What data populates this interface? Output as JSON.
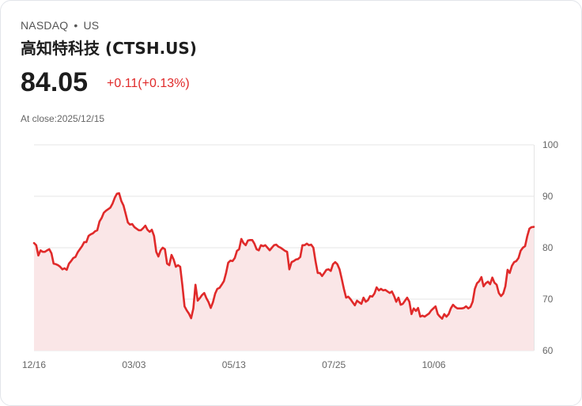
{
  "header": {
    "exchange": "NASDAQ",
    "separator": "•",
    "region": "US",
    "title": "高知特科技 (CTSH.US)",
    "price": "84.05",
    "change": "+0.11(+0.13%)",
    "close_label": "At close:2025/12/15"
  },
  "colors": {
    "line": "#e02a2a",
    "fill": "#fae6e7",
    "grid": "#e4e4e4",
    "down_text": "#e02a2a"
  },
  "chart_data": {
    "type": "area",
    "title": "",
    "xlabel": "",
    "ylabel": "",
    "ylim": [
      60,
      100
    ],
    "yticks": [
      "100",
      "90",
      "80",
      "70",
      "60"
    ],
    "ytick_values": [
      100,
      90,
      80,
      70,
      60
    ],
    "xticks": [
      "12/16",
      "03/03",
      "05/13",
      "07/25",
      "10/06"
    ],
    "grid": true,
    "values": [
      80.9,
      80.5,
      78.5,
      79.5,
      79.2,
      79.2,
      79.5,
      79.7,
      78.9,
      76.9,
      76.8,
      76.6,
      76.3,
      75.8,
      76.0,
      75.7,
      76.9,
      77.4,
      78.0,
      78.2,
      79.1,
      79.7,
      80.3,
      81.1,
      81.1,
      82.3,
      82.6,
      82.8,
      83.2,
      83.4,
      85.1,
      85.8,
      86.8,
      87.2,
      87.5,
      87.8,
      88.6,
      89.7,
      90.5,
      90.6,
      89.1,
      88.2,
      86.6,
      84.9,
      84.5,
      84.6,
      84.0,
      83.7,
      83.4,
      83.4,
      83.8,
      84.3,
      83.5,
      83.1,
      83.5,
      82.3,
      79.2,
      78.3,
      79.5,
      80.0,
      79.7,
      76.9,
      76.6,
      78.6,
      77.7,
      76.3,
      76.6,
      76.3,
      72.6,
      68.6,
      67.8,
      67.2,
      66.3,
      68.2,
      72.8,
      69.7,
      70.2,
      70.8,
      71.2,
      70.2,
      69.4,
      68.3,
      69.4,
      71.1,
      72.0,
      72.2,
      72.8,
      73.5,
      75.1,
      77.1,
      77.5,
      77.4,
      78.0,
      79.4,
      79.7,
      81.7,
      80.9,
      80.5,
      81.4,
      81.5,
      81.5,
      80.8,
      79.7,
      79.5,
      80.5,
      80.3,
      80.5,
      80.0,
      79.5,
      80.0,
      80.5,
      80.6,
      80.2,
      80.0,
      79.7,
      79.4,
      79.2,
      75.8,
      77.2,
      77.4,
      77.7,
      77.8,
      78.2,
      80.5,
      80.5,
      80.8,
      80.5,
      80.6,
      80.0,
      77.4,
      75.1,
      75.1,
      74.5,
      75.1,
      75.7,
      75.8,
      75.5,
      76.8,
      77.2,
      76.8,
      75.8,
      74.0,
      72.0,
      70.3,
      70.5,
      70.0,
      69.4,
      68.8,
      69.7,
      69.4,
      69.1,
      70.3,
      69.5,
      69.8,
      70.6,
      70.5,
      71.1,
      72.3,
      71.7,
      72.0,
      71.7,
      71.8,
      71.5,
      71.2,
      71.5,
      70.6,
      69.5,
      70.3,
      68.9,
      69.1,
      69.7,
      70.3,
      69.5,
      67.1,
      68.2,
      67.7,
      68.3,
      66.6,
      66.8,
      66.6,
      66.9,
      67.2,
      67.8,
      68.2,
      68.6,
      67.1,
      66.6,
      66.2,
      67.1,
      66.6,
      67.1,
      68.2,
      68.9,
      68.5,
      68.2,
      68.2,
      68.2,
      68.3,
      68.6,
      68.2,
      68.5,
      69.5,
      72.0,
      73.1,
      73.5,
      74.3,
      72.5,
      73.1,
      73.4,
      72.9,
      74.2,
      73.2,
      72.8,
      71.2,
      70.6,
      71.1,
      72.5,
      75.7,
      75.1,
      76.5,
      77.2,
      77.4,
      78.0,
      79.4,
      80.0,
      80.3,
      82.2,
      83.7,
      84.0,
      84.05
    ]
  }
}
